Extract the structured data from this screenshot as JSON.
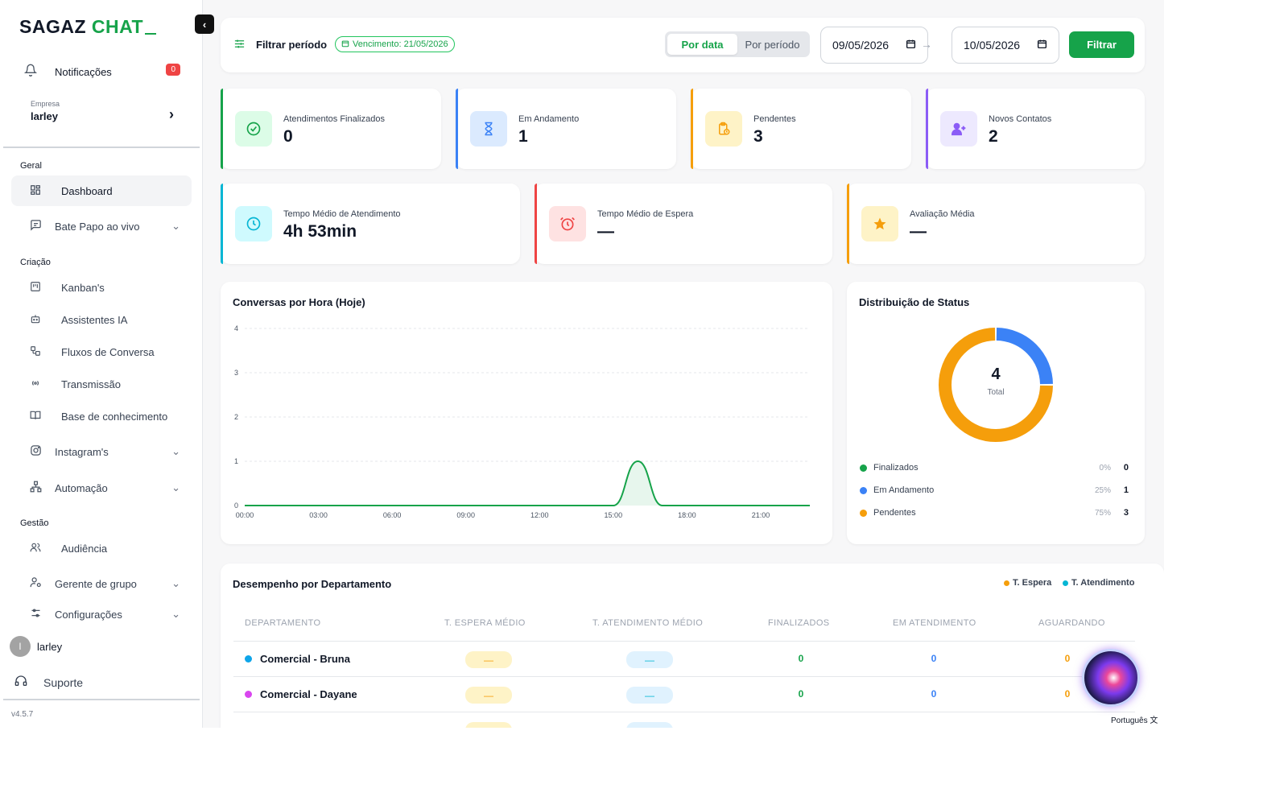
{
  "sidebar": {
    "logo_main": "SAGAZ",
    "logo_accent": "CHAT",
    "notifications_label": "Notificações",
    "notifications_count": "0",
    "company_caption": "Empresa",
    "company_name": "larley",
    "sections": {
      "geral": "Geral",
      "criacao": "Criação",
      "gestao": "Gestão"
    },
    "items": {
      "dashboard": "Dashboard",
      "bate_papo": "Bate Papo ao vivo",
      "kanbans": "Kanban's",
      "assistentes": "Assistentes IA",
      "fluxos": "Fluxos de Conversa",
      "transmissao": "Transmissão",
      "base": "Base de conhecimento",
      "instagram": "Instagram's",
      "automacao": "Automação",
      "audiencia": "Audiência",
      "gerente": "Gerente de grupo",
      "configuracoes": "Configurações"
    },
    "user_initial": "l",
    "user_name": "larley",
    "support_label": "Suporte",
    "version": "v4.5.7"
  },
  "filter": {
    "title": "Filtrar período",
    "due_date": "Vencimento: 21/05/2026",
    "tab_by_date": "Por data",
    "tab_by_period": "Por período",
    "date_from": "09/05/2026",
    "date_to": "10/05/2026",
    "button": "Filtrar"
  },
  "stats": {
    "finalizados": {
      "label": "Atendimentos Finalizados",
      "value": "0"
    },
    "andamento": {
      "label": "Em Andamento",
      "value": "1"
    },
    "pendentes": {
      "label": "Pendentes",
      "value": "3"
    },
    "novos": {
      "label": "Novos Contatos",
      "value": "2"
    },
    "tempo_atendimento": {
      "label": "Tempo Médio de Atendimento",
      "value": "4h 53min"
    },
    "tempo_espera": {
      "label": "Tempo Médio de Espera",
      "value": "—"
    },
    "avaliacao": {
      "label": "Avaliação Média",
      "value": "—"
    }
  },
  "colors": {
    "green": "#16a34a",
    "blue": "#3b82f6",
    "orange": "#f59e0b",
    "purple": "#8b5cf6",
    "cyan": "#06b6d4",
    "red": "#ef4444"
  },
  "chart_data": [
    {
      "type": "line",
      "title": "Conversas por Hora (Hoje)",
      "x": [
        "00:00",
        "01:00",
        "02:00",
        "03:00",
        "04:00",
        "05:00",
        "06:00",
        "07:00",
        "08:00",
        "09:00",
        "10:00",
        "11:00",
        "12:00",
        "13:00",
        "14:00",
        "15:00",
        "16:00",
        "17:00",
        "18:00",
        "19:00",
        "20:00",
        "21:00",
        "22:00",
        "23:00"
      ],
      "x_ticks": [
        "00:00",
        "03:00",
        "06:00",
        "09:00",
        "12:00",
        "15:00",
        "18:00",
        "21:00"
      ],
      "values": [
        0,
        0,
        0,
        0,
        0,
        0,
        0,
        0,
        0,
        0,
        0,
        0,
        0,
        0,
        0,
        0,
        1,
        0,
        0,
        0,
        0,
        0,
        0,
        0
      ],
      "yticks": [
        0,
        1,
        2,
        3,
        4
      ],
      "ylim": [
        0,
        4
      ],
      "grid": true,
      "color": "#16a34a"
    },
    {
      "type": "pie",
      "title": "Distribuição de Status",
      "center_value": "4",
      "center_label": "Total",
      "slices": [
        {
          "name": "Finalizados",
          "value": 0,
          "pct": "0%",
          "color": "#16a34a"
        },
        {
          "name": "Em Andamento",
          "value": 1,
          "pct": "25%",
          "color": "#3b82f6"
        },
        {
          "name": "Pendentes",
          "value": 3,
          "pct": "75%",
          "color": "#f59e0b"
        }
      ]
    }
  ],
  "dept": {
    "title": "Desempenho por Departamento",
    "legend_wait": "T. Espera",
    "legend_service": "T. Atendimento",
    "headers": [
      "DEPARTAMENTO",
      "T. ESPERA MÉDIO",
      "T. ATENDIMENTO MÉDIO",
      "FINALIZADOS",
      "EM ATENDIMENTO",
      "AGUARDANDO"
    ],
    "rows": [
      {
        "name": "Comercial - Bruna",
        "color": "#0ea5e9",
        "wait": "—",
        "service": "—",
        "finalizados": "0",
        "atendimento": "0",
        "aguardando": "0"
      },
      {
        "name": "Comercial - Dayane",
        "color": "#d946ef",
        "wait": "—",
        "service": "—",
        "finalizados": "0",
        "atendimento": "0",
        "aguardando": "0"
      }
    ]
  },
  "language": "Português"
}
